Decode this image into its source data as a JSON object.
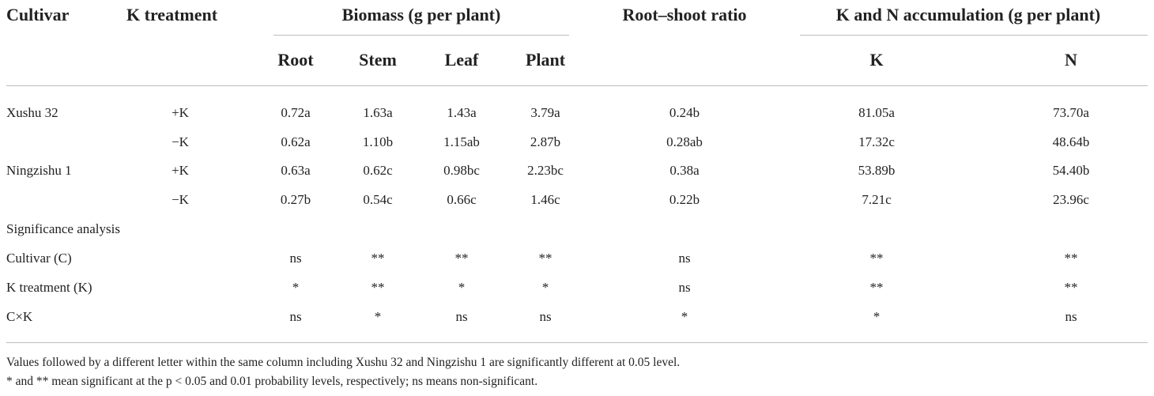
{
  "headers": {
    "cultivar": "Cultivar",
    "k_treatment": "K treatment",
    "biomass_group": "Biomass (g per plant)",
    "root_shoot": "Root–shoot ratio",
    "kn_group": "K and N accumulation (g per plant)",
    "root": "Root",
    "stem": "Stem",
    "leaf": "Leaf",
    "plant": "Plant",
    "k": "K",
    "n": "N"
  },
  "rows": [
    {
      "cultivar": "Xushu 32",
      "treatment": "+K",
      "root": "0.72a",
      "stem": "1.63a",
      "leaf": "1.43a",
      "plant": "3.79a",
      "ratio": "0.24b",
      "k": "81.05a",
      "n": "73.70a"
    },
    {
      "cultivar": "",
      "treatment": "−K",
      "root": "0.62a",
      "stem": "1.10b",
      "leaf": "1.15ab",
      "plant": "2.87b",
      "ratio": "0.28ab",
      "k": "17.32c",
      "n": "48.64b"
    },
    {
      "cultivar": "Ningzishu 1",
      "treatment": "+K",
      "root": "0.63a",
      "stem": "0.62c",
      "leaf": "0.98bc",
      "plant": "2.23bc",
      "ratio": "0.38a",
      "k": "53.89b",
      "n": "54.40b"
    },
    {
      "cultivar": "",
      "treatment": "−K",
      "root": "0.27b",
      "stem": "0.54c",
      "leaf": "0.66c",
      "plant": "1.46c",
      "ratio": "0.22b",
      "k": "7.21c",
      "n": "23.96c"
    }
  ],
  "significance_title": "Significance analysis",
  "sig_rows": [
    {
      "label": "Cultivar (C)",
      "root": "ns",
      "stem": "**",
      "leaf": "**",
      "plant": "**",
      "ratio": "ns",
      "k": "**",
      "n": "**"
    },
    {
      "label": "K treatment (K)",
      "root": "*",
      "stem": "**",
      "leaf": "*",
      "plant": "*",
      "ratio": "ns",
      "k": "**",
      "n": "**"
    },
    {
      "label": "C×K",
      "root": "ns",
      "stem": "*",
      "leaf": "ns",
      "plant": "ns",
      "ratio": "*",
      "k": "*",
      "n": "ns"
    }
  ],
  "footnotes": [
    "Values followed by a different letter within the same column including Xushu 32 and Ningzishu 1 are significantly different at 0.05 level.",
    "* and ** mean significant at the p < 0.05 and 0.01 probability levels, respectively; ns means non-significant."
  ]
}
